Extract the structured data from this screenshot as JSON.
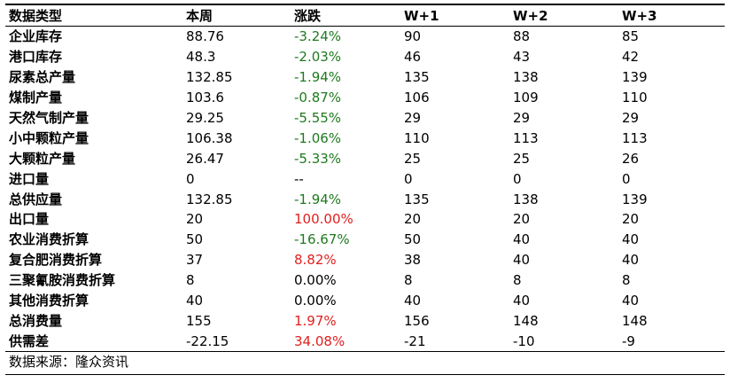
{
  "header": [
    "数据类型",
    "本周",
    "涨跌",
    "W+1",
    "W+2",
    "W+3"
  ],
  "rows": [
    {
      "name": "企业库存",
      "week": "88.76",
      "change": "-3.24%",
      "dir": "neg",
      "w1": "90",
      "w2": "88",
      "w3": "85"
    },
    {
      "name": "港口库存",
      "week": "48.3",
      "change": "-2.03%",
      "dir": "neg",
      "w1": "46",
      "w2": "43",
      "w3": "42"
    },
    {
      "name": "尿素总产量",
      "week": "132.85",
      "change": "-1.94%",
      "dir": "neg",
      "w1": "135",
      "w2": "138",
      "w3": "139"
    },
    {
      "name": "煤制产量",
      "week": "103.6",
      "change": "-0.87%",
      "dir": "neg",
      "w1": "106",
      "w2": "109",
      "w3": "110"
    },
    {
      "name": "天然气制产量",
      "week": "29.25",
      "change": "-5.55%",
      "dir": "neg",
      "w1": "29",
      "w2": "29",
      "w3": "29"
    },
    {
      "name": "小中颗粒产量",
      "week": "106.38",
      "change": "-1.06%",
      "dir": "neg",
      "w1": "110",
      "w2": "113",
      "w3": "113"
    },
    {
      "name": "大颗粒产量",
      "week": "26.47",
      "change": "-5.33%",
      "dir": "neg",
      "w1": "25",
      "w2": "25",
      "w3": "26"
    },
    {
      "name": "进口量",
      "week": "0",
      "change": "--",
      "dir": "neutral",
      "w1": "0",
      "w2": "0",
      "w3": "0"
    },
    {
      "name": "总供应量",
      "week": "132.85",
      "change": "-1.94%",
      "dir": "neg",
      "w1": "135",
      "w2": "138",
      "w3": "139"
    },
    {
      "name": "出口量",
      "week": "20",
      "change": "100.00%",
      "dir": "pos",
      "w1": "20",
      "w2": "20",
      "w3": "20"
    },
    {
      "name": "农业消费折算",
      "week": "50",
      "change": "-16.67%",
      "dir": "neg",
      "w1": "50",
      "w2": "40",
      "w3": "40"
    },
    {
      "name": "复合肥消费折算",
      "week": "37",
      "change": "8.82%",
      "dir": "pos",
      "w1": "38",
      "w2": "40",
      "w3": "40"
    },
    {
      "name": "三聚氰胺消费折算",
      "week": "8",
      "change": "0.00%",
      "dir": "neutral",
      "w1": "8",
      "w2": "8",
      "w3": "8"
    },
    {
      "name": "其他消费折算",
      "week": "40",
      "change": "0.00%",
      "dir": "neutral",
      "w1": "40",
      "w2": "40",
      "w3": "40"
    },
    {
      "name": "总消费量",
      "week": "155",
      "change": "1.97%",
      "dir": "pos",
      "w1": "156",
      "w2": "148",
      "w3": "148"
    },
    {
      "name": "供需差",
      "week": "-22.15",
      "change": "34.08%",
      "dir": "pos",
      "w1": "-21",
      "w2": "-10",
      "w3": "-9"
    }
  ],
  "colors": {
    "negative": "#1f7a1f",
    "positive": "#e0201e"
  },
  "source": "数据来源：隆众资讯"
}
